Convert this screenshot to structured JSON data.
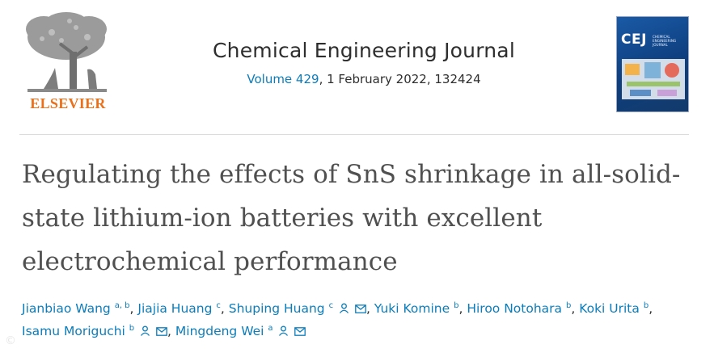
{
  "publisher": {
    "name": "ELSEVIER"
  },
  "journal": {
    "title": "Chemical Engineering Journal",
    "volume": "Volume 429",
    "date_pages": ", 1 February 2022, 132424",
    "cover": {
      "abbrev": "CEJ",
      "subtitle": "CHEMICAL ENGINEERING JOURNAL"
    }
  },
  "article": {
    "title": "Regulating the effects of SnS shrinkage in all-solid-state lithium-ion batteries with excellent electrochemical performance"
  },
  "authors": [
    {
      "name": "Jianbiao Wang",
      "aff": "a, b",
      "icons": []
    },
    {
      "name": "Jiajia Huang",
      "aff": "c",
      "icons": []
    },
    {
      "name": "Shuping Huang",
      "aff": "c",
      "icons": [
        "person-icon",
        "envelope-icon"
      ]
    },
    {
      "name": "Yuki Komine",
      "aff": "b",
      "icons": []
    },
    {
      "name": "Hiroo Notohara",
      "aff": "b",
      "icons": []
    },
    {
      "name": "Koki Urita",
      "aff": "b",
      "icons": []
    },
    {
      "name": "Isamu Moriguchi",
      "aff": "b",
      "icons": [
        "person-icon",
        "envelope-icon"
      ]
    },
    {
      "name": "Mingdeng Wei",
      "aff": "a",
      "icons": [
        "person-icon",
        "envelope-icon"
      ]
    }
  ],
  "colors": {
    "link": "#0c7dbb",
    "elsevier_orange": "#e9711c",
    "title_gray": "#505050"
  }
}
